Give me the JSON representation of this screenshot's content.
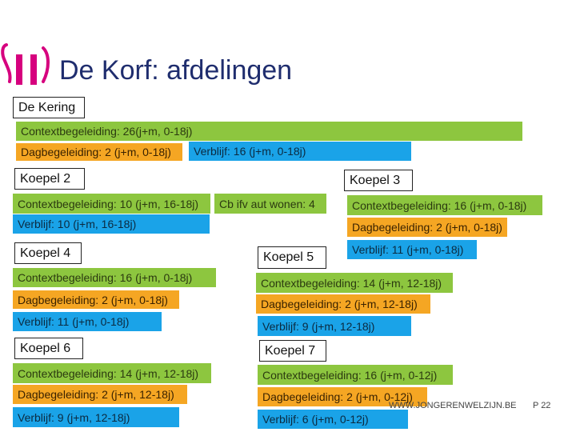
{
  "header": {
    "title": "De Korf: afdelingen",
    "brand_color": "#d6007e"
  },
  "colors": {
    "context": "#8dc63f",
    "dag": "#f5a623",
    "verblijf": "#1aa3e8"
  },
  "kering": {
    "label": "De Kering",
    "context": "Contextbegeleiding: 26(j+m, 0-18j)",
    "dag": "Dagbegeleiding: 2 (j+m, 0-18j)",
    "verblijf": "Verblijf: 16 (j+m, 0-18j)"
  },
  "koepel2": {
    "label": "Koepel 2",
    "context": "Contextbegeleiding: 10 (j+m, 16-18j)",
    "cb_ifv": "Cb ifv aut wonen: 4",
    "verblijf": "Verblijf: 10 (j+m, 16-18j)"
  },
  "koepel3": {
    "label": "Koepel 3",
    "context": "Contextbegeleiding: 16 (j+m, 0-18j)",
    "dag": "Dagbegeleiding: 2 (j+m, 0-18j)",
    "verblijf": "Verblijf: 11 (j+m, 0-18j)"
  },
  "koepel4": {
    "label": "Koepel 4",
    "context": "Contextbegeleiding: 16 (j+m, 0-18j)",
    "dag": "Dagbegeleiding: 2 (j+m, 0-18j)",
    "verblijf": "Verblijf: 11 (j+m, 0-18j)"
  },
  "koepel5": {
    "label": "Koepel 5",
    "context": "Contextbegeleiding: 14 (j+m, 12-18j)",
    "dag": "Dagbegeleiding: 2 (j+m, 12-18j)",
    "verblijf": "Verblijf: 9 (j+m, 12-18j)"
  },
  "koepel6": {
    "label": "Koepel 6",
    "context": "Contextbegeleiding: 14 (j+m, 12-18j)",
    "dag": "Dagbegeleiding: 2 (j+m, 12-18j)",
    "verblijf": "Verblijf: 9 (j+m, 12-18j)"
  },
  "koepel7": {
    "label": "Koepel 7",
    "context": "Contextbegeleiding: 16 (j+m, 0-12j)",
    "dag": "Dagbegeleiding: 2 (j+m, 0-12j)",
    "verblijf": "Verblijf: 6 (j+m, 0-12j)"
  },
  "footer": {
    "site": "WWW.JONGERENWELZIJN.BE",
    "page": "P 22"
  }
}
